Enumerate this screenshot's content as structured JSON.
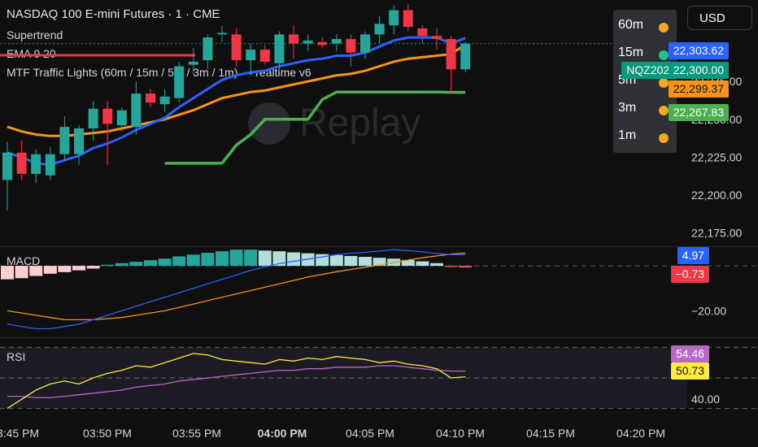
{
  "header": {
    "title": "NASDAQ 100 E-mini Futures · 1 · CME",
    "indicators": [
      "Supertrend",
      "EMA 9 20",
      "MTF Traffic Lights (60m / 15m / 5m / 3m / 1m) — realtime v6"
    ],
    "watermark": "Replay"
  },
  "currency_button": "USD",
  "traffic_lights": {
    "rows": [
      {
        "label": "60m",
        "color": "#f5a623"
      },
      {
        "label": "15m",
        "color": "#26c281"
      },
      {
        "label": "5m",
        "color": "#f5a623"
      },
      {
        "label": "3m",
        "color": "#f5a623"
      },
      {
        "label": "1m",
        "color": "#f5a623"
      }
    ]
  },
  "price_tags": [
    {
      "text": "22,303.62",
      "bg": "#2962ff",
      "value": 22303.62
    },
    {
      "text": "NQZ2025",
      "bg": "#089981",
      "value": 22300.0
    },
    {
      "text": "22,300.00",
      "bg": "#089981",
      "value": 22300.0
    },
    {
      "text": "22,299.37",
      "bg": "#f7931a",
      "value": 22299.37
    },
    {
      "text": "22,267.83",
      "bg": "#4caf50",
      "value": 22267.83
    }
  ],
  "macd_tags": [
    {
      "text": "4.97",
      "bg": "#2962ff",
      "value": 4.97
    },
    {
      "text": "−0.73",
      "bg": "#f23645",
      "value": -0.73
    }
  ],
  "rsi_tags": [
    {
      "text": "54.46",
      "bg": "#ba68c8",
      "value": 54.46
    },
    {
      "text": "50.73",
      "bg": "#ffeb3b",
      "value": 50.73
    }
  ],
  "pane_labels": {
    "macd": "MACD",
    "rsi": "RSI"
  },
  "colors": {
    "up": "#26a69a",
    "down": "#f23645",
    "ema9": "#2962ff",
    "ema20": "#f7931a",
    "supertrend": "#4caf50",
    "macd": "#2962ff",
    "signal": "#f7931a",
    "rsi": "#ffeb3b",
    "rsi_ma": "#ba68c8",
    "hist_up_strong": "#26a69a",
    "hist_up_weak": "#b2dfdb",
    "hist_down_strong": "#ff5252",
    "hist_down_weak": "#ffcdd2"
  },
  "chart_data": [
    {
      "type": "candlestick",
      "name": "price",
      "ylim": [
        22170,
        22318
      ],
      "yticks": [
        "22,275.00",
        "22,250.00",
        "22,225.00",
        "22,200.00",
        "22,175.00"
      ],
      "ytick_values": [
        22275,
        22250,
        22225,
        22200,
        22175
      ],
      "x_times": [
        "3:45 PM",
        "03:50 PM",
        "03:55 PM",
        "04:00 PM",
        "04:05 PM",
        "04:10 PM",
        "04:15 PM",
        "04:20 PM"
      ],
      "bold_time": "04:00 PM",
      "candles": [
        {
          "o": 22210,
          "h": 22235,
          "l": 22190,
          "c": 22228
        },
        {
          "o": 22228,
          "h": 22236,
          "l": 22210,
          "c": 22214
        },
        {
          "o": 22214,
          "h": 22230,
          "l": 22208,
          "c": 22227
        },
        {
          "o": 22213,
          "h": 22232,
          "l": 22210,
          "c": 22227
        },
        {
          "o": 22227,
          "h": 22252,
          "l": 22222,
          "c": 22245
        },
        {
          "o": 22227,
          "h": 22246,
          "l": 22220,
          "c": 22244
        },
        {
          "o": 22244,
          "h": 22262,
          "l": 22236,
          "c": 22257
        },
        {
          "o": 22257,
          "h": 22262,
          "l": 22220,
          "c": 22247
        },
        {
          "o": 22246,
          "h": 22258,
          "l": 22242,
          "c": 22256
        },
        {
          "o": 22245,
          "h": 22275,
          "l": 22240,
          "c": 22267
        },
        {
          "o": 22267,
          "h": 22270,
          "l": 22258,
          "c": 22261
        },
        {
          "o": 22260,
          "h": 22270,
          "l": 22255,
          "c": 22265
        },
        {
          "o": 22264,
          "h": 22288,
          "l": 22261,
          "c": 22285
        },
        {
          "o": 22286,
          "h": 22297,
          "l": 22280,
          "c": 22288
        },
        {
          "o": 22289,
          "h": 22306,
          "l": 22283,
          "c": 22304
        },
        {
          "o": 22306,
          "h": 22312,
          "l": 22301,
          "c": 22307
        },
        {
          "o": 22306,
          "h": 22310,
          "l": 22285,
          "c": 22289
        },
        {
          "o": 22289,
          "h": 22300,
          "l": 22279,
          "c": 22296
        },
        {
          "o": 22296,
          "h": 22299,
          "l": 22286,
          "c": 22288
        },
        {
          "o": 22287,
          "h": 22308,
          "l": 22282,
          "c": 22306
        },
        {
          "o": 22306,
          "h": 22312,
          "l": 22290,
          "c": 22300
        },
        {
          "o": 22300,
          "h": 22306,
          "l": 22295,
          "c": 22302
        },
        {
          "o": 22301,
          "h": 22304,
          "l": 22297,
          "c": 22299
        },
        {
          "o": 22300,
          "h": 22306,
          "l": 22295,
          "c": 22303
        },
        {
          "o": 22303,
          "h": 22306,
          "l": 22285,
          "c": 22294
        },
        {
          "o": 22294,
          "h": 22308,
          "l": 22290,
          "c": 22306
        },
        {
          "o": 22306,
          "h": 22318,
          "l": 22300,
          "c": 22313
        },
        {
          "o": 22312,
          "h": 22325,
          "l": 22306,
          "c": 22322
        },
        {
          "o": 22322,
          "h": 22326,
          "l": 22308,
          "c": 22311
        },
        {
          "o": 22310,
          "h": 22312,
          "l": 22300,
          "c": 22305
        },
        {
          "o": 22305,
          "h": 22310,
          "l": 22296,
          "c": 22303
        },
        {
          "o": 22303,
          "h": 22305,
          "l": 22267,
          "c": 22283
        },
        {
          "o": 22283,
          "h": 22301,
          "l": 22281,
          "c": 22300
        }
      ],
      "ema9": [
        22228,
        22225,
        22221,
        22220,
        22223,
        22226,
        22231,
        22234,
        22238,
        22243,
        22247,
        22251,
        22258,
        22264,
        22270,
        22276,
        22279,
        22281,
        22282,
        22285,
        22287,
        22289,
        22290,
        22292,
        22292,
        22294,
        22298,
        22302,
        22304,
        22304,
        22304,
        22300,
        22303.62
      ],
      "ema20": [
        22245,
        22242,
        22240,
        22239,
        22239,
        22240,
        22241,
        22242,
        22244,
        22246,
        22248,
        22250,
        22253,
        22256,
        22260,
        22264,
        22266,
        22268,
        22269,
        22271,
        22273,
        22275,
        22277,
        22279,
        22280,
        22282,
        22285,
        22288,
        22290,
        22291,
        22292,
        22293,
        22299.37
      ],
      "supertrend_segments": [
        {
          "from": 11,
          "to": 15,
          "values": [
            22221,
            22221,
            22221,
            22221,
            22221
          ]
        },
        {
          "from": 15,
          "to": 32,
          "values": [
            22221,
            22233,
            22240,
            22250,
            22250,
            22250,
            22250,
            22263,
            22268,
            22268,
            22268,
            22268,
            22268,
            22268,
            22268,
            22268,
            22267.83,
            22267.83
          ]
        }
      ]
    },
    {
      "type": "bar+line",
      "name": "MACD",
      "ylim": [
        -30,
        8
      ],
      "yticks": [
        "−20.00"
      ],
      "ytick_values": [
        -20
      ],
      "histogram": [
        -6,
        -5.5,
        -4.5,
        -3.5,
        -2.8,
        -2,
        -1.2,
        0.5,
        1.2,
        1.8,
        2.5,
        3.2,
        4.2,
        5.0,
        5.8,
        6.5,
        7.2,
        7.2,
        6.8,
        6.5,
        6.0,
        5.6,
        5.2,
        4.8,
        4.4,
        4.0,
        3.6,
        3.2,
        2.6,
        2.0,
        1.2,
        -0.5,
        -0.73
      ],
      "macd": [
        -26,
        -27,
        -28,
        -28,
        -27,
        -26,
        -24,
        -22,
        -20,
        -18,
        -16,
        -14,
        -12,
        -10,
        -8,
        -6,
        -4,
        -2,
        -0.5,
        1,
        2,
        3,
        4,
        5,
        5.6,
        6,
        6.6,
        7.2,
        6.8,
        6.2,
        5.5,
        5.0,
        4.97
      ],
      "signal": [
        -20,
        -21,
        -22,
        -23,
        -24,
        -24,
        -24,
        -23.5,
        -23,
        -22,
        -21,
        -20,
        -18.5,
        -17,
        -15.5,
        -14,
        -12.5,
        -11,
        -9.5,
        -8,
        -6.5,
        -5,
        -3.8,
        -2.6,
        -1.6,
        -0.6,
        0.4,
        1.4,
        2.6,
        3.6,
        4.4,
        5.2,
        5.7
      ]
    },
    {
      "type": "line",
      "name": "RSI",
      "ylim": [
        25,
        75
      ],
      "yticks": [
        "40.00"
      ],
      "ytick_values": [
        40
      ],
      "bands": [
        70,
        50,
        30
      ],
      "rsi": [
        30,
        36,
        42,
        46,
        48,
        46,
        50,
        53,
        55,
        58,
        57,
        60,
        63,
        66,
        65,
        62,
        61,
        60,
        59,
        62,
        61,
        63,
        62,
        64,
        63,
        62,
        60,
        61,
        59,
        58,
        56,
        50,
        50.73
      ],
      "rsi_ma": [
        38,
        38,
        37,
        37,
        38,
        39,
        40,
        41,
        42,
        44,
        45,
        46,
        48,
        49,
        50,
        51,
        52,
        53,
        54,
        55,
        55,
        56,
        56,
        57,
        57,
        57,
        58,
        58,
        57,
        56,
        55,
        54.5,
        54.46
      ]
    }
  ]
}
